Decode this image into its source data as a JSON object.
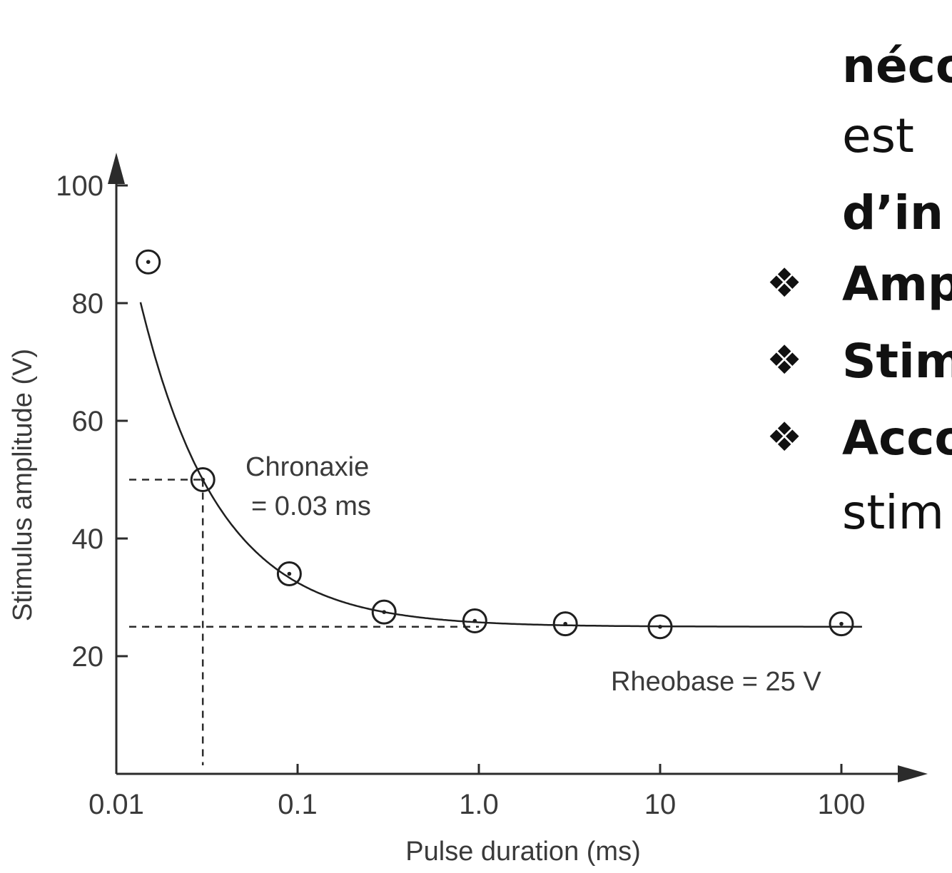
{
  "chart_data": {
    "type": "scatter",
    "xlabel": "Pulse duration (ms)",
    "ylabel": "Stimulus amplitude (V)",
    "x_scale": "log",
    "xlim": [
      0.01,
      100
    ],
    "ylim": [
      0,
      100
    ],
    "x_ticks": [
      "0.01",
      "0.1",
      "1.0",
      "10",
      "100"
    ],
    "y_ticks": [
      "20",
      "40",
      "60",
      "80",
      "100"
    ],
    "grid": false,
    "points": [
      {
        "x": 0.015,
        "y": 87
      },
      {
        "x": 0.03,
        "y": 50
      },
      {
        "x": 0.09,
        "y": 34
      },
      {
        "x": 0.3,
        "y": 27.5
      },
      {
        "x": 0.95,
        "y": 26
      },
      {
        "x": 3.0,
        "y": 25.5
      },
      {
        "x": 10.0,
        "y": 25
      },
      {
        "x": 100.0,
        "y": 25.5
      }
    ],
    "fit_curve": {
      "type": "strength-duration",
      "rheobase": 25,
      "chronaxie": 0.03
    },
    "annotations": {
      "chronaxie_line1": "Chronaxie",
      "chronaxie_line2": "= 0.03 ms",
      "rheobase": "Rheobase = 25 V"
    }
  },
  "slide_text": {
    "line1": "néco",
    "line2": "est",
    "line3": "d’in",
    "bullet1": "Amp",
    "bullet2": "Stim",
    "bullet3": "Acco",
    "line4": "stim"
  },
  "icons": {
    "bullet": "four-diamond-bullet-icon"
  }
}
